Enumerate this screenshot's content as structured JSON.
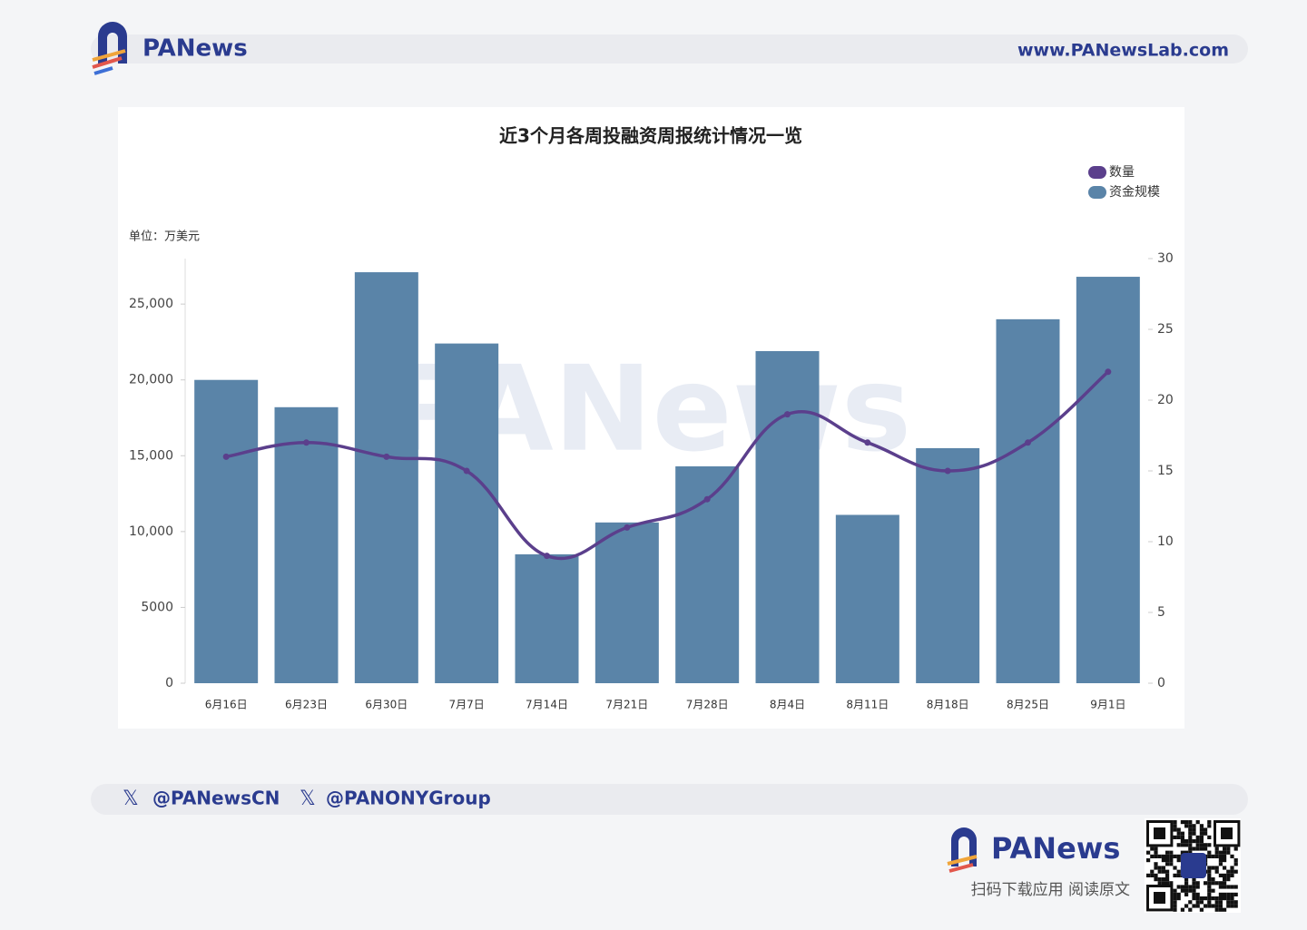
{
  "header": {
    "logo": "PANews",
    "url": "www.PANewsLab.com"
  },
  "footer": {
    "handles": [
      "@PANewsCN",
      "@PANONYGroup"
    ],
    "brand": "PANews",
    "slogan": "扫码下载应用 阅读原文"
  },
  "chart_data": {
    "type": "combo",
    "title": "近3个月各周投融资周报统计情况一览",
    "y_label": "单位：万美元",
    "watermark": "PANews",
    "categories": [
      "6月16日",
      "6月23日",
      "6月30日",
      "7月7日",
      "7月14日",
      "7月21日",
      "7月28日",
      "8月4日",
      "8月11日",
      "8月18日",
      "8月25日",
      "9月1日"
    ],
    "series": [
      {
        "name": "数量",
        "type": "line",
        "axis": "y2",
        "color": "#5b3f8c",
        "values": [
          16,
          17,
          16,
          15,
          9,
          11,
          13,
          19,
          17,
          15,
          17,
          22
        ]
      },
      {
        "name": "资金规模",
        "type": "bar",
        "axis": "y",
        "color": "#5a84a8",
        "values": [
          20000,
          18200,
          27100,
          22400,
          8500,
          10600,
          14300,
          21900,
          11100,
          15500,
          24000,
          26800
        ]
      }
    ],
    "ylim": [
      0,
      28000
    ],
    "yticks": [
      0,
      5000,
      {
        "value": 10000,
        "label": "10,000"
      },
      {
        "value": 15000,
        "label": "15,000"
      },
      {
        "value": 20000,
        "label": "20,000"
      },
      {
        "value": 25000,
        "label": "25,000"
      }
    ],
    "y2lim": [
      0,
      30
    ],
    "y2ticks": [
      0,
      5,
      10,
      15,
      20,
      25,
      30
    ],
    "legend": "top-right"
  }
}
